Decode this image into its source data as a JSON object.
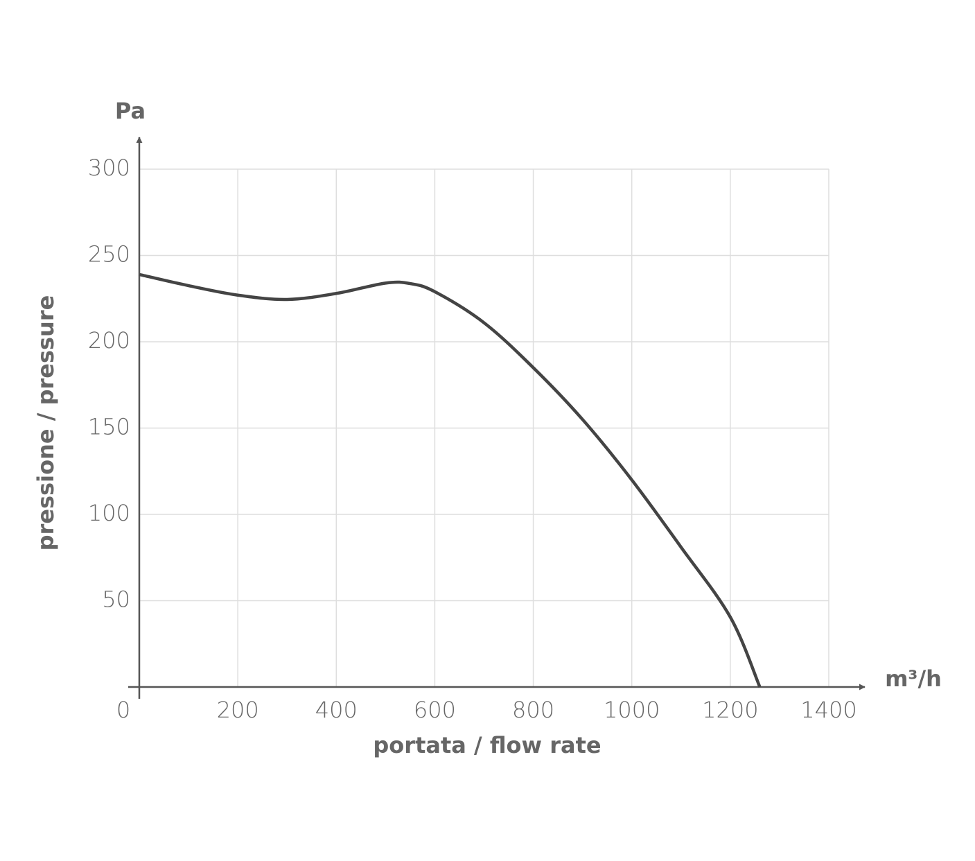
{
  "chart_data": {
    "type": "line",
    "x_label": "portata / flow rate",
    "y_label": "pressione / pressure",
    "x_unit": "m³/h",
    "y_unit": "Pa",
    "x": [
      0,
      100,
      200,
      300,
      400,
      500,
      550,
      600,
      700,
      800,
      900,
      1000,
      1100,
      1200,
      1260
    ],
    "series": [
      {
        "color": "#444444",
        "values": [
          239,
          232.5,
          227,
          224.5,
          228,
          234,
          233.7,
          229,
          211,
          185,
          155,
          120,
          81,
          40.5,
          0
        ]
      }
    ],
    "xlim": [
      0,
      1400
    ],
    "ylim": [
      0,
      300
    ],
    "xticks": [
      0,
      200,
      400,
      600,
      800,
      1000,
      1200,
      1400
    ],
    "yticks": [
      50,
      100,
      150,
      200,
      250,
      300
    ],
    "grid": true
  }
}
